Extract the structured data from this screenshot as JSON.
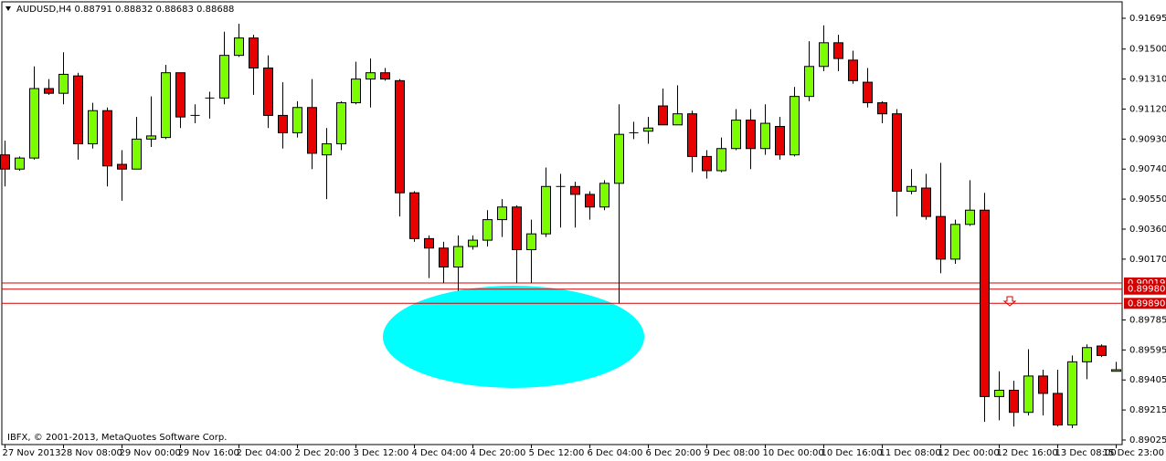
{
  "chart_data": {
    "type": "candlestick",
    "title": "AUDUSD,H4  0.88791 0.88832 0.88683 0.88688",
    "annotation": "IBFX, © 2001-2013, MetaQuotes Software Corp.",
    "categories": [
      "27 Nov 2013",
      null,
      null,
      null,
      "28 Nov 08:00",
      null,
      null,
      null,
      "29 Nov 00:00",
      null,
      null,
      null,
      "29 Nov 16:00",
      null,
      null,
      null,
      "2 Dec 04:00",
      null,
      null,
      null,
      "2 Dec 20:00",
      null,
      null,
      null,
      "3 Dec 12:00",
      null,
      null,
      null,
      "4 Dec 04:00",
      null,
      null,
      null,
      "4 Dec 20:00",
      null,
      null,
      null,
      "5 Dec 12:00",
      null,
      null,
      null,
      "6 Dec 04:00",
      null,
      null,
      null,
      "6 Dec 20:00",
      null,
      null,
      null,
      "9 Dec 08:00",
      null,
      null,
      null,
      "10 Dec 00:00",
      null,
      null,
      null,
      "10 Dec 16:00",
      null,
      null,
      null,
      "11 Dec 08:00",
      null,
      null,
      null,
      "12 Dec 00:00",
      null,
      null,
      null,
      "12 Dec 16:00",
      null,
      null,
      null,
      "13 Dec 08:00",
      null,
      null,
      null,
      "15 Dec 23:00"
    ],
    "open": [
      0.9083,
      0.9074,
      0.9081,
      0.9125,
      0.9122,
      0.9133,
      0.909,
      0.9111,
      0.9077,
      0.9074,
      0.9093,
      0.9094,
      0.9135,
      0.9108,
      0.9119,
      0.9119,
      0.9146,
      0.9157,
      0.9138,
      0.9108,
      0.9097,
      0.9113,
      0.9083,
      0.909,
      0.9116,
      0.9131,
      0.9135,
      0.913,
      0.9059,
      0.903,
      0.9024,
      0.9012,
      0.9025,
      0.9029,
      0.9042,
      0.905,
      0.9023,
      0.9033,
      0.9063,
      0.9063,
      0.9058,
      0.905,
      0.9065,
      0.9097,
      0.9098,
      0.9114,
      0.9102,
      0.9109,
      0.9082,
      0.9073,
      0.9087,
      0.9105,
      0.9087,
      0.9101,
      0.9083,
      0.912,
      0.9139,
      0.9154,
      0.9143,
      0.9129,
      0.9116,
      0.9109,
      0.906,
      0.9062,
      0.9044,
      0.9017,
      0.9039,
      0.9048,
      0.893,
      0.8934,
      0.892,
      0.8943,
      0.8932,
      0.8912,
      0.8952,
      0.8962,
      0.8946
    ],
    "high": [
      0.9092,
      0.9082,
      0.9139,
      0.9131,
      0.9148,
      0.9135,
      0.9116,
      0.9113,
      0.9086,
      0.9107,
      0.912,
      0.914,
      0.9135,
      0.9115,
      0.9123,
      0.9161,
      0.9166,
      0.9159,
      0.9146,
      0.9129,
      0.9117,
      0.9131,
      0.91,
      0.9117,
      0.9142,
      0.9144,
      0.9138,
      0.9131,
      0.906,
      0.9032,
      0.9028,
      0.9032,
      0.9032,
      0.9048,
      0.9055,
      0.9051,
      0.9042,
      0.9075,
      0.9071,
      0.9066,
      0.906,
      0.9067,
      0.9115,
      0.9104,
      0.9107,
      0.9125,
      0.9127,
      0.9111,
      0.9086,
      0.9094,
      0.9112,
      0.9112,
      0.9115,
      0.9107,
      0.9126,
      0.9155,
      0.9165,
      0.9159,
      0.9149,
      0.9138,
      0.9117,
      0.9112,
      0.9074,
      0.9071,
      0.9078,
      0.9042,
      0.9067,
      0.9059,
      0.8946,
      0.894,
      0.896,
      0.8947,
      0.8947,
      0.8956,
      0.8963,
      0.8963,
      0.8952
    ],
    "low": [
      0.9063,
      0.9073,
      0.908,
      0.9121,
      0.9115,
      0.908,
      0.9087,
      0.9063,
      0.9054,
      0.9074,
      0.9088,
      0.9093,
      0.91,
      0.9103,
      0.9106,
      0.9115,
      0.9145,
      0.9121,
      0.91,
      0.9087,
      0.9094,
      0.9074,
      0.9055,
      0.9086,
      0.9115,
      0.9113,
      0.913,
      0.9044,
      0.9028,
      0.9005,
      0.9002,
      0.8997,
      0.9023,
      0.9025,
      0.9031,
      0.9002,
      0.9002,
      0.9031,
      0.9037,
      0.9037,
      0.9042,
      0.9048,
      0.8989,
      0.9093,
      0.909,
      0.9102,
      0.9102,
      0.9072,
      0.9068,
      0.9072,
      0.9086,
      0.9074,
      0.9083,
      0.908,
      0.9082,
      0.9117,
      0.9136,
      0.9136,
      0.9128,
      0.9113,
      0.9103,
      0.9044,
      0.9058,
      0.9042,
      0.9008,
      0.9014,
      0.9038,
      0.8914,
      0.8915,
      0.8911,
      0.8918,
      0.8918,
      0.8911,
      0.891,
      0.8941,
      0.8955,
      0.8946
    ],
    "close": [
      0.9074,
      0.9081,
      0.9125,
      0.9122,
      0.9134,
      0.909,
      0.9111,
      0.9076,
      0.9074,
      0.9093,
      0.9095,
      0.9135,
      0.9107,
      0.9108,
      0.9119,
      0.9146,
      0.9157,
      0.9138,
      0.9108,
      0.9097,
      0.9113,
      0.9084,
      0.909,
      0.9116,
      0.9131,
      0.9135,
      0.9131,
      0.9059,
      0.903,
      0.9024,
      0.9012,
      0.9025,
      0.9029,
      0.9042,
      0.905,
      0.9023,
      0.9033,
      0.9063,
      0.9063,
      0.9058,
      0.905,
      0.9065,
      0.9096,
      0.9097,
      0.91,
      0.9102,
      0.9109,
      0.9082,
      0.9073,
      0.9087,
      0.9105,
      0.9087,
      0.9103,
      0.9083,
      0.912,
      0.9139,
      0.9154,
      0.9144,
      0.913,
      0.9116,
      0.9109,
      0.906,
      0.9063,
      0.9044,
      0.9017,
      0.9039,
      0.9048,
      0.893,
      0.8934,
      0.892,
      0.8943,
      0.8932,
      0.8912,
      0.8952,
      0.8961,
      0.8956,
      0.8947
    ],
    "up_color": "#7cfc00",
    "down_color": "#e60000",
    "ylim": [
      0.88996,
      0.91799
    ],
    "yticks": [
      0.91695,
      {
        "value": 0.915,
        "label": "0.91500"
      },
      {
        "value": 0.9131,
        "label": "0.91310"
      },
      {
        "value": 0.9112,
        "label": "0.91120"
      },
      {
        "value": 0.9093,
        "label": "0.90930"
      },
      {
        "value": 0.9074,
        "label": "0.90740"
      },
      {
        "value": 0.9055,
        "label": "0.90550"
      },
      {
        "value": 0.9036,
        "label": "0.90360"
      },
      {
        "value": 0.9017,
        "label": "0.90170"
      },
      0.89785,
      0.89595,
      0.89405,
      0.89215,
      0.89025
    ],
    "hlines": [
      0.90019,
      {
        "value": 0.8998,
        "label": "0.89980"
      },
      {
        "value": 0.8989,
        "label": "0.89890"
      }
    ],
    "hline_color": "#d40000",
    "grid": false
  }
}
